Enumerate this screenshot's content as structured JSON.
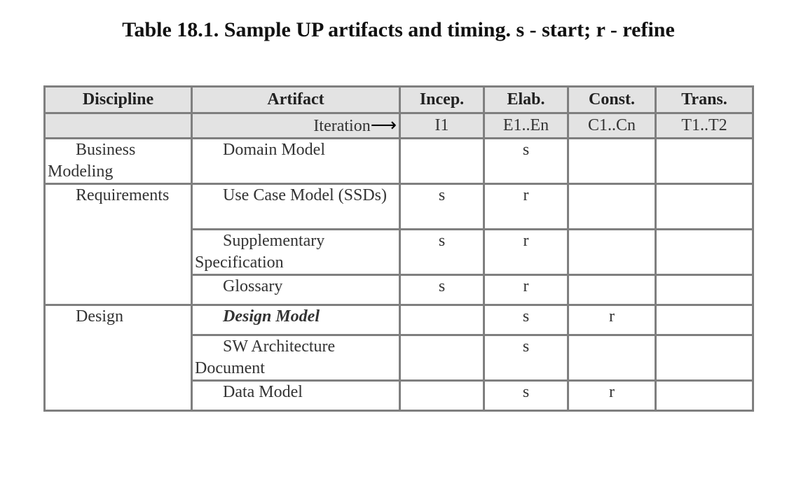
{
  "caption": "Table 18.1. Sample UP artifacts and timing. s - start; r - refine",
  "headers": {
    "discipline": "Discipline",
    "artifact": "Artifact",
    "incep": "Incep.",
    "elab": "Elab.",
    "const": "Const.",
    "trans": "Trans."
  },
  "iteration_row": {
    "label": "Iteration",
    "arrow": "⟶",
    "incep": "I1",
    "elab": "E1..En",
    "const": "C1..Cn",
    "trans": "T1..T2"
  },
  "rows": [
    {
      "discipline": "Business Modeling",
      "artifact": "Domain Model",
      "incep": "",
      "elab": "s",
      "const": "",
      "trans": ""
    },
    {
      "discipline": "Requirements",
      "artifact": "Use Case Model (SSDs)",
      "incep": "s",
      "elab": "r",
      "const": "",
      "trans": ""
    },
    {
      "discipline": "",
      "artifact": "Supplementary Specification",
      "incep": "s",
      "elab": "r",
      "const": "",
      "trans": ""
    },
    {
      "discipline": "",
      "artifact": "Glossary",
      "incep": "s",
      "elab": "r",
      "const": "",
      "trans": ""
    },
    {
      "discipline": "Design",
      "artifact": "Design Model",
      "incep": "",
      "elab": "s",
      "const": "r",
      "trans": ""
    },
    {
      "discipline": "",
      "artifact": "SW Architecture Document",
      "incep": "",
      "elab": "s",
      "const": "",
      "trans": ""
    },
    {
      "discipline": "",
      "artifact": "Data Model",
      "incep": "",
      "elab": "s",
      "const": "r",
      "trans": ""
    }
  ]
}
